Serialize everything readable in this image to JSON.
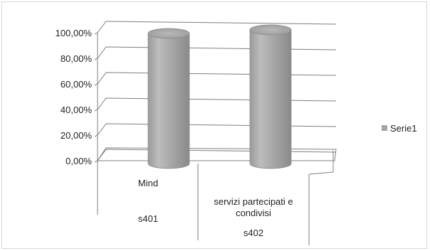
{
  "chart_data": {
    "type": "bar",
    "shape": "3d-cylinder",
    "y_tick_labels": [
      "0,00%",
      "20,00%",
      "40,00%",
      "60,00%",
      "80,00%",
      "100,00%"
    ],
    "ylim": [
      0,
      100
    ],
    "grid": true,
    "legend_position": "right",
    "categories": [
      {
        "label": "Mind",
        "group": "s401"
      },
      {
        "label": "servizi partecipati e condivisi",
        "group": "s402"
      }
    ],
    "series": [
      {
        "name": "Serie1",
        "values": [
          100,
          100
        ],
        "color": "#a6a6a6"
      }
    ]
  }
}
